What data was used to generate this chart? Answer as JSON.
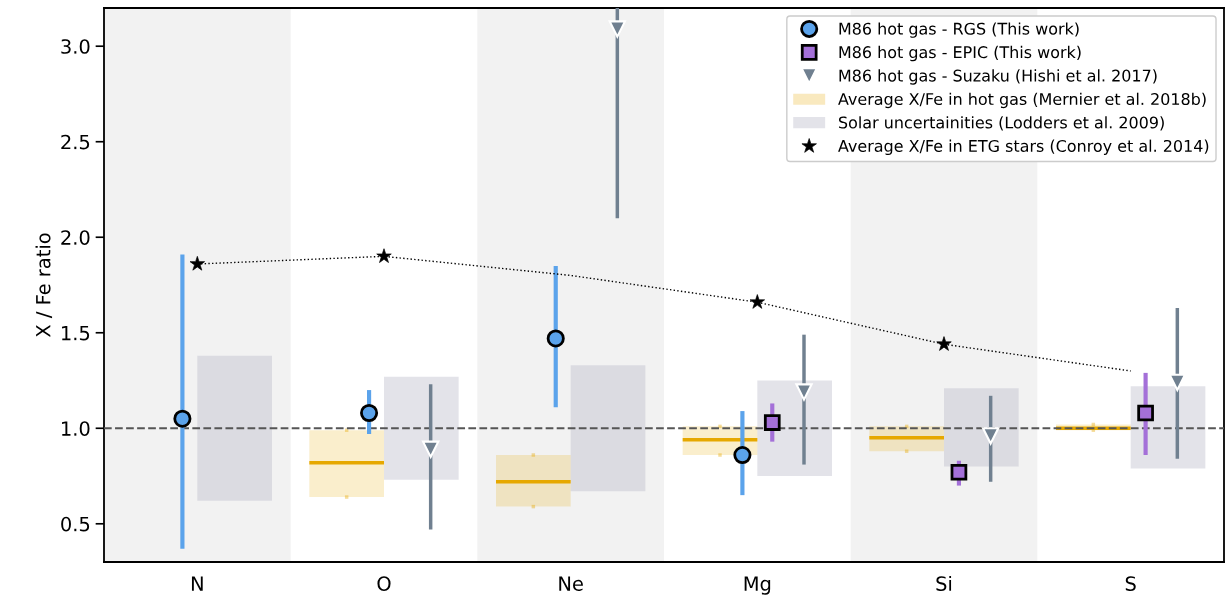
{
  "chart_data": {
    "type": "scatter",
    "ylabel": "X / Fe ratio",
    "categories": [
      "N",
      "O",
      "Ne",
      "Mg",
      "Si",
      "S"
    ],
    "ylim": [
      0.3,
      3.2
    ],
    "yticks": [
      {
        "value": 0.5,
        "label": "0.5"
      },
      {
        "value": 1.0,
        "label": "1.0"
      },
      {
        "value": 1.5,
        "label": "1.5"
      },
      {
        "value": 2.0,
        "label": "2.0"
      },
      {
        "value": 2.5,
        "label": "2.5"
      },
      {
        "value": 3.0,
        "label": "3.0"
      }
    ],
    "grid": false,
    "legend": "top right",
    "bands": [
      {
        "axis": "x",
        "from": "N",
        "to": "N",
        "color": "#f2f2f2"
      },
      {
        "axis": "x",
        "from": "Ne",
        "to": "Ne",
        "color": "#f2f2f2"
      },
      {
        "axis": "x",
        "from": "Si",
        "to": "Si",
        "color": "#f2f2f2"
      }
    ],
    "ref_lines": [
      {
        "axis": "y",
        "value": 1.0,
        "color": "#555555",
        "line_style": "dashed"
      }
    ],
    "series": [
      {
        "name": "M86 hot gas - RGS (This work)",
        "marker": "circle",
        "color": "#5ba3eb",
        "values": [
          1.05,
          1.08,
          1.47,
          0.86,
          null,
          null
        ],
        "errors": [
          [
            0.37,
            1.91
          ],
          [
            0.97,
            1.2
          ],
          [
            1.11,
            1.85
          ],
          [
            0.65,
            1.09
          ],
          null,
          null
        ]
      },
      {
        "name": "M86 hot gas - EPIC (This work)",
        "marker": "square",
        "color": "#a470d8",
        "values": [
          null,
          null,
          null,
          1.03,
          0.77,
          1.08
        ],
        "errors": [
          null,
          null,
          null,
          [
            0.93,
            1.13
          ],
          [
            0.7,
            0.83
          ],
          [
            0.86,
            1.29
          ]
        ]
      },
      {
        "name": "M86 hot gas - Suzaku (Hishi et al. 2017)",
        "marker": "triangle",
        "color": "#708090",
        "values": [
          null,
          0.89,
          3.09,
          1.19,
          0.96,
          1.24
        ],
        "errors": [
          null,
          [
            0.47,
            1.23
          ],
          [
            2.1,
            3.2
          ],
          [
            0.81,
            1.49
          ],
          [
            0.72,
            1.17
          ],
          [
            0.84,
            1.63
          ]
        ]
      },
      {
        "name": "Average X/Fe in hot gas (Mernier et al. 2018b)",
        "type": "box",
        "color": "#e6a800",
        "boxes": [
          null,
          {
            "low": 0.64,
            "q1": 0.64,
            "median": 0.82,
            "q3": 0.99,
            "high": 0.99
          },
          {
            "low": 0.59,
            "q1": 0.59,
            "median": 0.72,
            "q3": 0.86,
            "high": 0.86
          },
          {
            "low": 0.86,
            "q1": 0.86,
            "median": 0.94,
            "q3": 1.01,
            "high": 1.01
          },
          {
            "low": 0.88,
            "q1": 0.88,
            "median": 0.95,
            "q3": 1.01,
            "high": 1.01
          },
          {
            "low": 0.99,
            "q1": 0.99,
            "median": 1.0,
            "q3": 1.02,
            "high": 1.02
          }
        ]
      },
      {
        "name": "Solar uncertainities (Lodders et al. 2009)",
        "type": "bar",
        "color": "#b9b9c8",
        "base": [
          0.62,
          0.73,
          0.67,
          0.75,
          0.8,
          0.79
        ],
        "values": [
          0.76,
          0.54,
          0.66,
          0.5,
          0.41,
          0.43
        ]
      },
      {
        "name": "Average X/Fe in ETG stars (Conroy et al. 2014)",
        "marker": "star",
        "color": "#000000",
        "values": [
          1.86,
          1.9,
          null,
          1.66,
          1.44,
          null
        ]
      },
      {
        "type": "line",
        "marker": "none",
        "line_style": "dotted",
        "color": "#000000",
        "values": [
          1.86,
          1.9,
          1.8,
          1.66,
          1.44,
          1.3
        ]
      }
    ]
  }
}
